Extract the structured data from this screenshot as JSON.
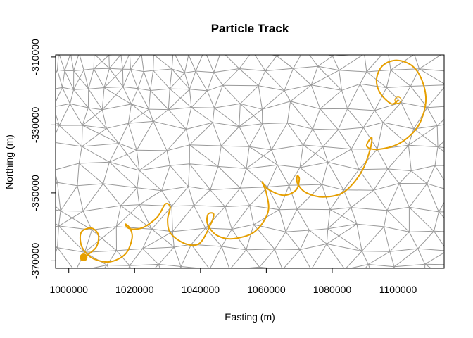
{
  "chart_data": {
    "type": "line",
    "title": "Particle Track",
    "xlabel": "Easting (m)",
    "ylabel": "Northing (m)",
    "xlim": [
      996000,
      1114000
    ],
    "ylim": [
      -372200,
      -309400
    ],
    "x_ticks": [
      1000000,
      1020000,
      1040000,
      1060000,
      1080000,
      1100000
    ],
    "x_tick_labels": [
      "1000000",
      "1020000",
      "1040000",
      "1060000",
      "1080000",
      "1100000"
    ],
    "y_ticks": [
      -310000,
      -330000,
      -350000,
      -370000
    ],
    "y_tick_labels": [
      "-310000",
      "-330000",
      "-350000",
      "-370000"
    ],
    "colors": {
      "track": "#E69F00",
      "mesh": "#999999",
      "axis": "#000000"
    },
    "background": "triangular mesh",
    "series": [
      {
        "values": [
          [
            1100000,
            -322700
          ],
          [
            1098000,
            -323800
          ],
          [
            1094500,
            -320500
          ],
          [
            1093500,
            -316300
          ],
          [
            1095500,
            -312400
          ],
          [
            1099800,
            -311000
          ],
          [
            1104500,
            -312800
          ],
          [
            1107500,
            -317500
          ],
          [
            1108400,
            -323500
          ],
          [
            1106000,
            -330500
          ],
          [
            1100500,
            -335400
          ],
          [
            1094000,
            -337200
          ],
          [
            1090500,
            -336300
          ],
          [
            1092000,
            -333700
          ],
          [
            1091500,
            -337300
          ],
          [
            1088800,
            -344000
          ],
          [
            1083500,
            -349800
          ],
          [
            1077200,
            -351200
          ],
          [
            1072000,
            -349900
          ],
          [
            1069500,
            -347300
          ],
          [
            1069400,
            -345000
          ],
          [
            1070000,
            -346000
          ],
          [
            1069000,
            -349200
          ],
          [
            1065200,
            -350700
          ],
          [
            1060500,
            -348900
          ],
          [
            1058700,
            -346800
          ],
          [
            1060000,
            -350000
          ],
          [
            1060500,
            -355700
          ],
          [
            1056500,
            -361400
          ],
          [
            1050000,
            -363500
          ],
          [
            1045000,
            -362500
          ],
          [
            1042200,
            -359300
          ],
          [
            1042300,
            -356300
          ],
          [
            1044000,
            -356200
          ],
          [
            1043200,
            -359000
          ],
          [
            1039800,
            -364800
          ],
          [
            1035500,
            -365000
          ],
          [
            1031000,
            -362000
          ],
          [
            1030000,
            -358000
          ],
          [
            1030800,
            -354200
          ],
          [
            1029300,
            -353300
          ],
          [
            1027000,
            -357000
          ],
          [
            1023000,
            -360000
          ],
          [
            1019800,
            -360700
          ],
          [
            1017800,
            -360200
          ],
          [
            1017300,
            -359200
          ],
          [
            1018700,
            -360600
          ],
          [
            1019200,
            -363500
          ],
          [
            1017200,
            -368000
          ],
          [
            1012500,
            -370300
          ],
          [
            1007500,
            -369400
          ],
          [
            1004500,
            -366800
          ],
          [
            1003500,
            -364000
          ],
          [
            1004000,
            -361300
          ],
          [
            1007000,
            -360400
          ],
          [
            1009000,
            -362400
          ],
          [
            1008500,
            -365700
          ],
          [
            1006500,
            -367700
          ],
          [
            1004500,
            -369000
          ]
        ],
        "start": [
          1100000,
          -322700
        ],
        "end": [
          1004500,
          -369000
        ]
      }
    ]
  }
}
